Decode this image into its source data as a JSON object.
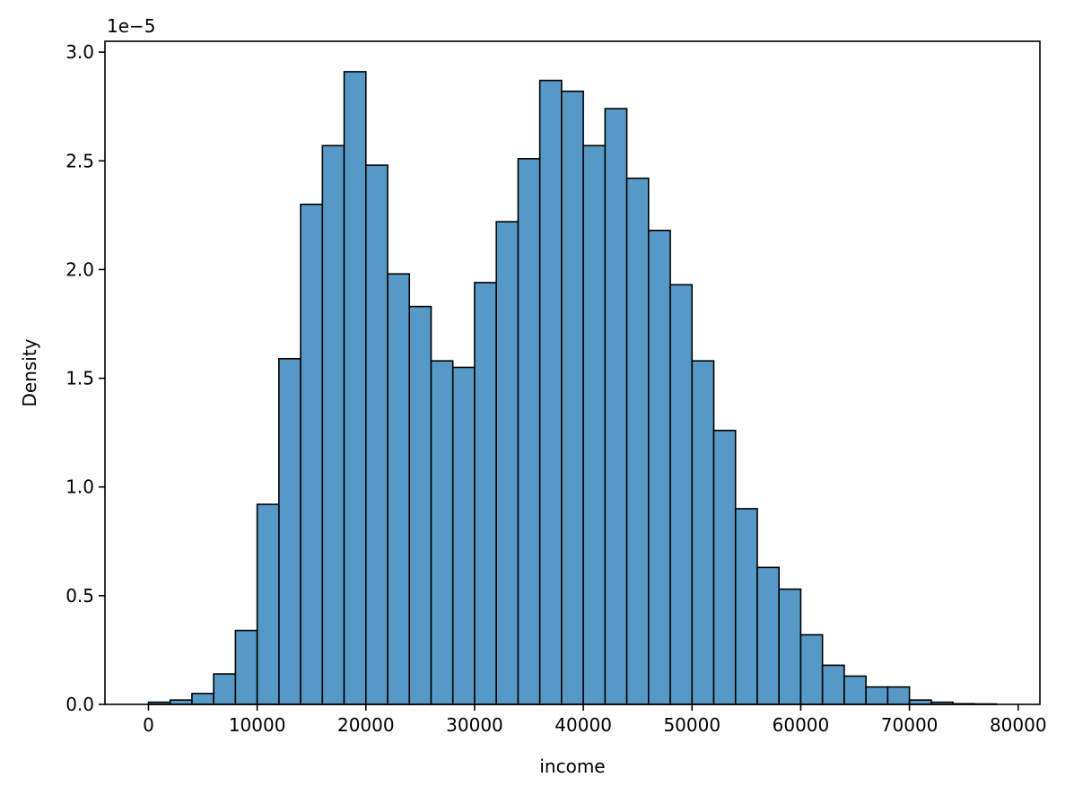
{
  "chart_data": {
    "type": "bar",
    "title": "",
    "xlabel": "income",
    "ylabel": "Density",
    "y_scale_multiplier": "1e−5",
    "xlim": [
      -4000,
      82000
    ],
    "ylim": [
      0,
      3.05
    ],
    "bin_width": 2000,
    "bin_starts": [
      0,
      2000,
      4000,
      6000,
      8000,
      10000,
      12000,
      14000,
      16000,
      18000,
      20000,
      22000,
      24000,
      26000,
      28000,
      30000,
      32000,
      34000,
      36000,
      38000,
      40000,
      42000,
      44000,
      46000,
      48000,
      50000,
      52000,
      54000,
      56000,
      58000,
      60000,
      62000,
      64000,
      66000,
      68000,
      70000,
      72000,
      74000,
      76000
    ],
    "values": [
      0.01,
      0.02,
      0.05,
      0.14,
      0.34,
      0.92,
      1.59,
      2.3,
      2.57,
      2.91,
      2.48,
      1.98,
      1.83,
      1.58,
      1.55,
      1.94,
      2.22,
      2.51,
      2.87,
      2.82,
      2.57,
      2.74,
      2.42,
      2.18,
      1.93,
      1.58,
      1.26,
      0.9,
      0.63,
      0.53,
      0.32,
      0.18,
      0.13,
      0.08,
      0.08,
      0.02,
      0.01,
      0.003,
      0.002
    ],
    "x_ticks": [
      0,
      10000,
      20000,
      30000,
      40000,
      50000,
      60000,
      70000,
      80000
    ],
    "x_tick_labels": [
      "0",
      "10000",
      "20000",
      "30000",
      "40000",
      "50000",
      "60000",
      "70000",
      "80000"
    ],
    "y_ticks": [
      0,
      0.5,
      1.0,
      1.5,
      2.0,
      2.5,
      3.0
    ],
    "y_tick_labels": [
      "0.0",
      "0.5",
      "1.0",
      "1.5",
      "2.0",
      "2.5",
      "3.0"
    ],
    "grid": false,
    "legend": "none",
    "bar_color": "#5799c6",
    "bar_edge_color": "#000000"
  }
}
